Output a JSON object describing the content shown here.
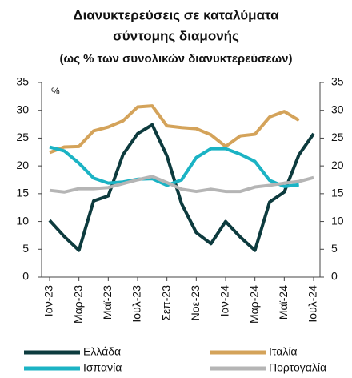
{
  "chart_data": {
    "type": "line",
    "title_lines": [
      "Διανυκτερεύσεις σε καταλύματα",
      "σύντομης διαμονής",
      "(ως % των συνολικών διανυκτερεύσεων)"
    ],
    "y_label": "%",
    "categories": [
      "Ιαν-23",
      null,
      "Μαρ-23",
      null,
      "Μαϊ-23",
      null,
      "Ιουλ-23",
      null,
      "Σεπ-23",
      null,
      "Νοε-23",
      null,
      "Ιαν-24",
      null,
      "Μαρ-24",
      null,
      "Μαϊ-24",
      null,
      "Ιουλ-24"
    ],
    "series": [
      {
        "name": "Ελλάδα",
        "color": "#0d3b3e",
        "values": [
          10.2,
          7.3,
          4.8,
          13.7,
          14.6,
          22,
          25.8,
          27.4,
          21.8,
          13.2,
          8,
          6,
          10,
          7.2,
          4.8,
          13.5,
          15.3,
          22,
          25.8
        ]
      },
      {
        "name": "Ιταλία",
        "color": "#d4a35a",
        "values": [
          22.4,
          23.4,
          23.5,
          26.3,
          27,
          28.1,
          30.6,
          30.8,
          27.2,
          26.9,
          26.7,
          25.6,
          23.5,
          25.4,
          25.7,
          28.8,
          29.8,
          28.2,
          null
        ]
      },
      {
        "name": "Ισπανία",
        "color": "#1bb3c4",
        "values": [
          23.4,
          22.7,
          20.5,
          17.8,
          16.9,
          17.1,
          17.6,
          17.7,
          16.5,
          17.5,
          21.5,
          23.1,
          23.1,
          22.1,
          20.8,
          17.4,
          16.3,
          16.6,
          null
        ]
      },
      {
        "name": "Πορτογαλία",
        "color": "#b5b5b5",
        "values": [
          15.6,
          15.3,
          15.9,
          15.9,
          16.1,
          16.8,
          17.5,
          18.1,
          17.0,
          15.8,
          15.4,
          15.8,
          15.4,
          15.4,
          16.2,
          16.5,
          16.9,
          17.2,
          17.9
        ]
      }
    ],
    "ylim": [
      0,
      35
    ],
    "yticks": [
      0,
      5,
      10,
      15,
      20,
      25,
      30,
      35
    ],
    "y2lim": [
      0,
      35
    ],
    "y2ticks": [
      0,
      5,
      10,
      15,
      20,
      25,
      30,
      35
    ],
    "title_color": "#1f5c55"
  }
}
